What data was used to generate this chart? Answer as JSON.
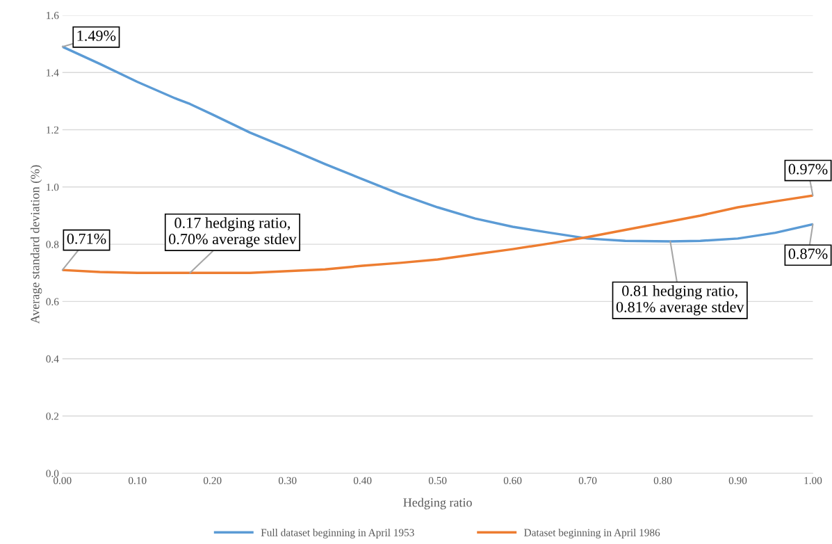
{
  "chart_data": {
    "type": "line",
    "xlabel": "Hedging ratio",
    "ylabel": "Average standard deviation (%)",
    "x": [
      0,
      0.05,
      0.1,
      0.15,
      0.17,
      0.2,
      0.25,
      0.3,
      0.35,
      0.4,
      0.45,
      0.5,
      0.55,
      0.6,
      0.65,
      0.7,
      0.75,
      0.81,
      0.85,
      0.9,
      0.95,
      1.0
    ],
    "series": [
      {
        "name": "Full dataset beginning in April 1953",
        "color": "#5b9bd5",
        "values": [
          1.49,
          1.43,
          1.367,
          1.31,
          1.29,
          1.253,
          1.19,
          1.136,
          1.08,
          1.027,
          0.975,
          0.929,
          0.89,
          0.861,
          0.84,
          0.82,
          0.812,
          0.81,
          0.812,
          0.82,
          0.84,
          0.87
        ]
      },
      {
        "name": "Dataset beginning in April 1986",
        "color": "#ed7d31",
        "values": [
          0.71,
          0.703,
          0.7,
          0.7,
          0.7,
          0.7,
          0.7,
          0.706,
          0.712,
          0.725,
          0.735,
          0.747,
          0.765,
          0.783,
          0.803,
          0.825,
          0.85,
          0.88,
          0.9,
          0.929,
          0.95,
          0.97
        ]
      }
    ],
    "xlim": [
      0,
      1.0
    ],
    "ylim": [
      0,
      1.6
    ],
    "xticks": [
      {
        "value": 0,
        "label": "0.00"
      },
      {
        "value": 0.1,
        "label": "0.10"
      },
      {
        "value": 0.2,
        "label": "0.20"
      },
      {
        "value": 0.3,
        "label": "0.30"
      },
      {
        "value": 0.4,
        "label": "0.40"
      },
      {
        "value": 0.5,
        "label": "0.50"
      },
      {
        "value": 0.6,
        "label": "0.60"
      },
      {
        "value": 0.7,
        "label": "0.70"
      },
      {
        "value": 0.8,
        "label": "0.80"
      },
      {
        "value": 0.9,
        "label": "0.90"
      },
      {
        "value": 1.0,
        "label": "1.00"
      }
    ],
    "yticks": [
      {
        "value": 0,
        "label": "0.0"
      },
      {
        "value": 0.2,
        "label": "0.2"
      },
      {
        "value": 0.4,
        "label": "0.4"
      },
      {
        "value": 0.6,
        "label": "0.6"
      },
      {
        "value": 0.8,
        "label": "0.8"
      },
      {
        "value": 1.0,
        "label": "1.0"
      },
      {
        "value": 1.2,
        "label": "1.2"
      },
      {
        "value": 1.4,
        "label": "1.4"
      },
      {
        "value": 1.6,
        "label": "1.6"
      }
    ],
    "grid": "y",
    "legend": "bottom",
    "marker": "none",
    "line_style": "solid",
    "annotations": [
      {
        "text": "1.49%",
        "x": 0,
        "y": 1.49
      },
      {
        "text": "0.71%",
        "x": 0,
        "y": 0.71
      },
      {
        "text": "0.17 hedging ratio,\n0.70% average stdev",
        "x": 0.17,
        "y": 0.7
      },
      {
        "text": "0.81 hedging ratio,\n0.81% average stdev",
        "x": 0.81,
        "y": 0.81
      },
      {
        "text": "0.97%",
        "x": 1.0,
        "y": 0.97
      },
      {
        "text": "0.87%",
        "x": 1.0,
        "y": 0.87
      }
    ]
  }
}
